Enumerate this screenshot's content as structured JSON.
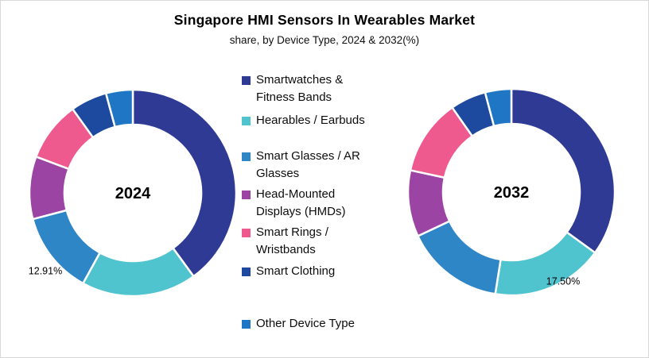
{
  "title": "Singapore HMI Sensors In Wearables Market",
  "subtitle": "share, by Device Type, 2024 & 2032(%)",
  "legend": {
    "items": [
      {
        "label": "Smartwatches &\nFitness Bands",
        "color": "#2E3A94"
      },
      {
        "label": "Hearables / Earbuds",
        "color": "#4FC3CE"
      },
      {
        "label": "Smart Glasses / AR\nGlasses",
        "color": "#2E86C7"
      },
      {
        "label": "Head-Mounted\nDisplays (HMDs)",
        "color": "#9C44A4"
      },
      {
        "label": "Smart Rings /\nWristbands",
        "color": "#EE5A8D"
      },
      {
        "label": "Smart Clothing",
        "color": "#1D4A9E"
      },
      {
        "label": "Other Device Type",
        "color": "#1E76C4"
      }
    ]
  },
  "chart_data": {
    "type": "pie",
    "subtype": "donut",
    "title": "Singapore HMI Sensors In Wearables Market",
    "subtitle": "share, by Device Type, 2024 & 2032(%)",
    "units": "%",
    "legend_position": "center-between-charts",
    "categories": [
      "Smartwatches & Fitness Bands",
      "Hearables / Earbuds",
      "Smart Glasses / AR Glasses",
      "Head-Mounted Displays (HMDs)",
      "Smart Rings / Wristbands",
      "Smart Clothing",
      "Other Device Type"
    ],
    "colors": [
      "#2E3A94",
      "#4FC3CE",
      "#2E86C7",
      "#9C44A4",
      "#EE5A8D",
      "#1D4A9E",
      "#1E76C4"
    ],
    "charts": [
      {
        "name": "2024",
        "center_label": "2024",
        "values": [
          40.0,
          18.0,
          12.91,
          9.8,
          9.4,
          5.7,
          4.19
        ],
        "shown_labels": [
          {
            "index": 2,
            "text": "12.91%"
          }
        ]
      },
      {
        "name": "2032",
        "center_label": "2032",
        "values": [
          35.0,
          17.5,
          15.5,
          10.4,
          11.9,
          5.6,
          4.1
        ],
        "shown_labels": [
          {
            "index": 1,
            "text": "17.50%"
          }
        ]
      }
    ],
    "notes": "Only the labeled values (12.91%, 17.50%) are printed on the chart; other values estimated from arc angles."
  }
}
